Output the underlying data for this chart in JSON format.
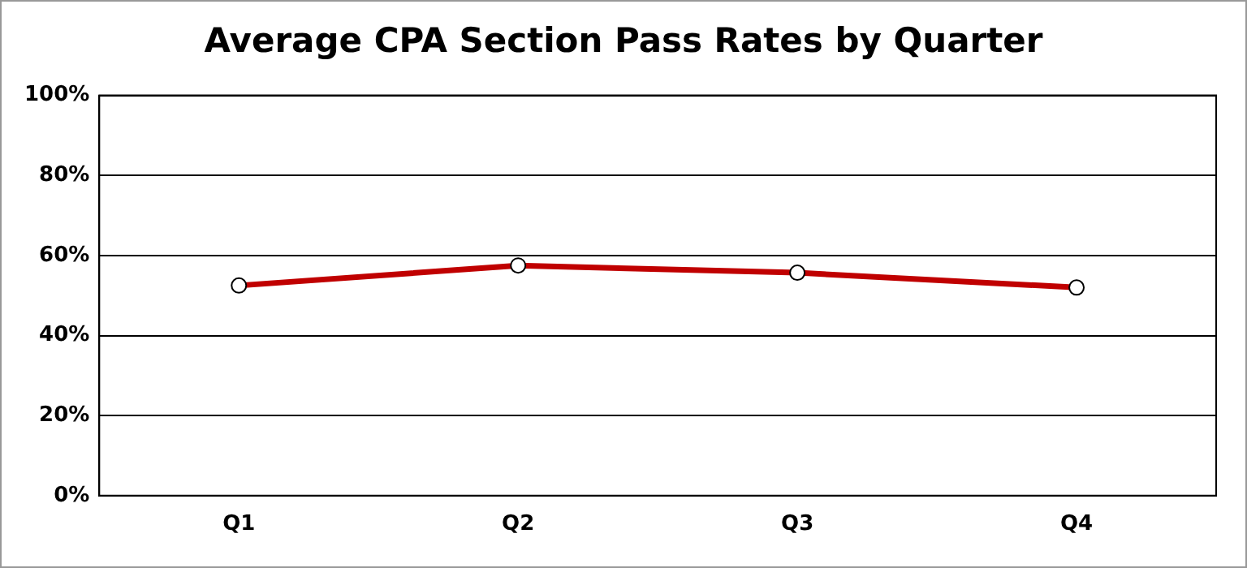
{
  "chart_data": {
    "type": "line",
    "title": "Average CPA Section Pass Rates by Quarter",
    "categories": [
      "Q1",
      "Q2",
      "Q3",
      "Q4"
    ],
    "series": [
      {
        "color": "#c00000",
        "values": [
          52.5,
          57.5,
          55.7,
          52.0
        ]
      }
    ],
    "ylim": [
      0,
      100
    ],
    "yticks": [
      {
        "value": 0,
        "label": "0%"
      },
      {
        "value": 20,
        "label": "20%"
      },
      {
        "value": 40,
        "label": "40%"
      },
      {
        "value": 60,
        "label": "60%"
      },
      {
        "value": 80,
        "label": "80%"
      },
      {
        "value": 100,
        "label": "100%"
      }
    ],
    "grid": "y",
    "legend": false,
    "marker": "circle",
    "line_style": "solid"
  }
}
